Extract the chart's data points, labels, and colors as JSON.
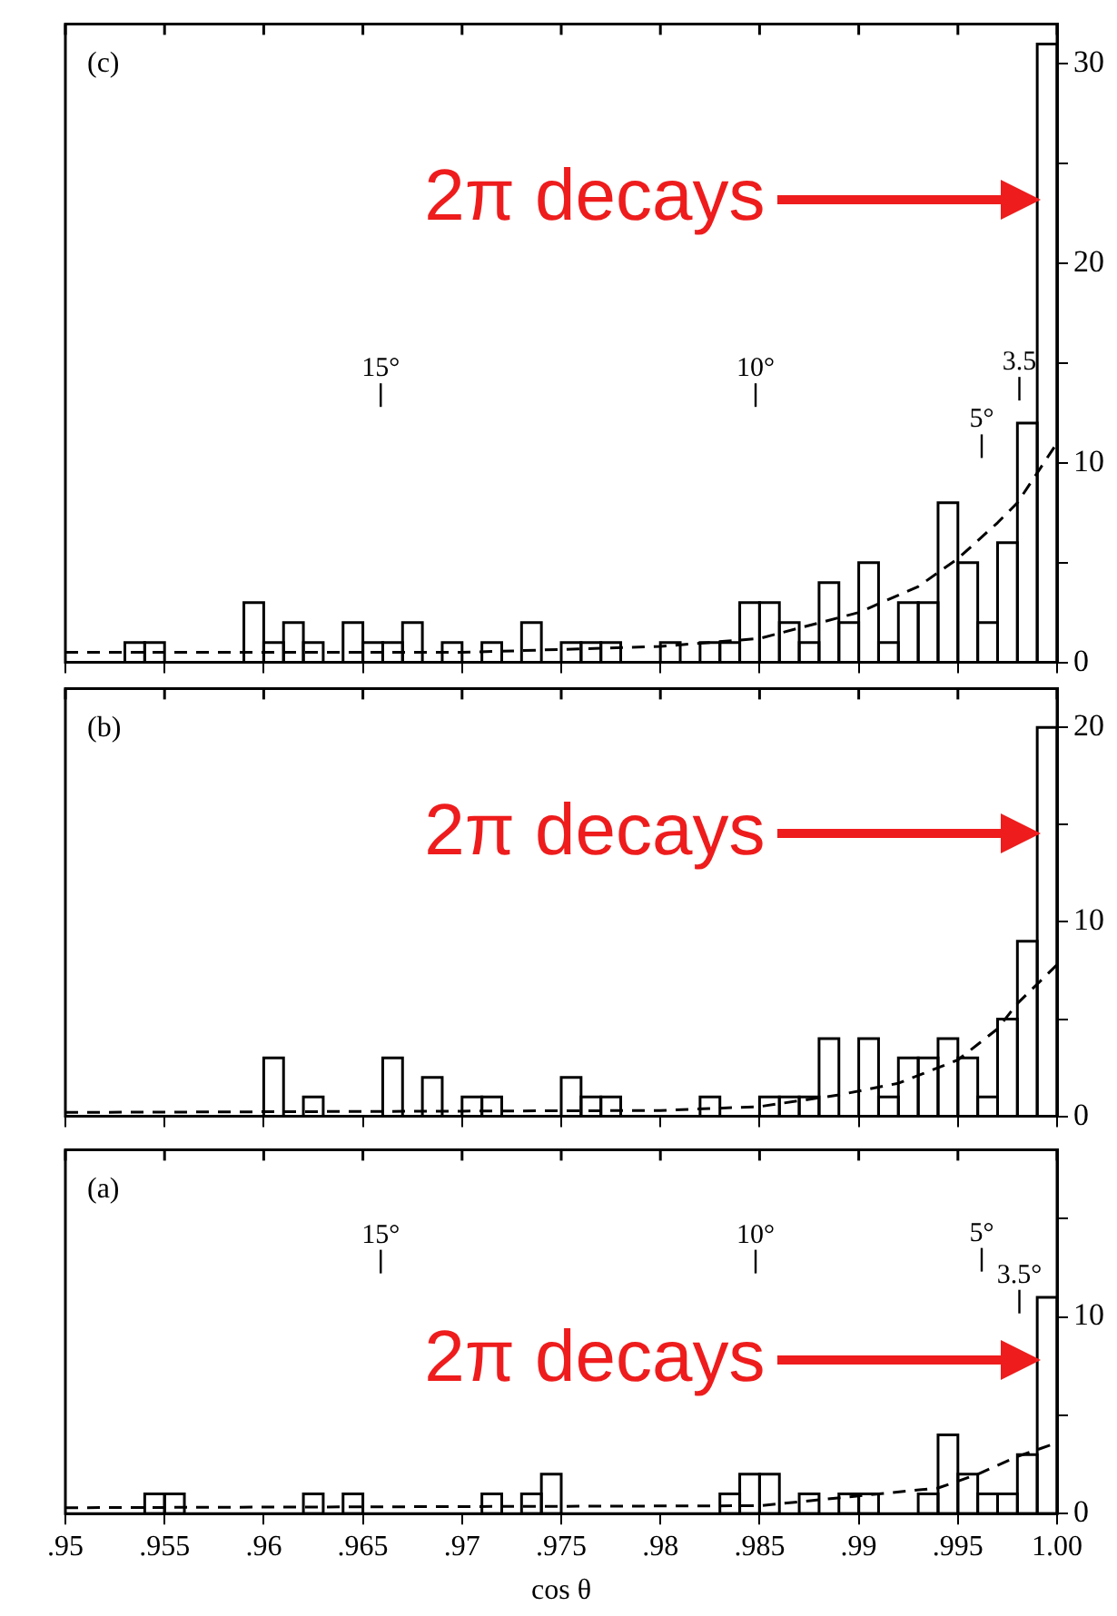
{
  "chart_data": [
    {
      "type": "histogram",
      "title": "(c)",
      "color": "#000000",
      "bins": [
        0.95,
        0.951,
        0.952,
        0.953,
        0.954,
        0.955,
        0.956,
        0.957,
        0.958,
        0.959,
        0.96,
        0.961,
        0.962,
        0.963,
        0.964,
        0.965,
        0.966,
        0.967,
        0.968,
        0.969,
        0.97,
        0.971,
        0.972,
        0.973,
        0.974,
        0.975,
        0.976,
        0.977,
        0.978,
        0.979,
        0.98,
        0.981,
        0.982,
        0.983,
        0.984,
        0.985,
        0.986,
        0.987,
        0.988,
        0.989,
        0.99,
        0.991,
        0.992,
        0.993,
        0.994,
        0.995,
        0.996,
        0.997,
        0.998,
        0.999,
        1.0
      ],
      "values": [
        0,
        0,
        0,
        1,
        1,
        0,
        0,
        0,
        0,
        3,
        1,
        2,
        1,
        0,
        2,
        1,
        1,
        2,
        0,
        1,
        0,
        1,
        0,
        2,
        0,
        1,
        1,
        1,
        0,
        0,
        1,
        0,
        1,
        1,
        3,
        3,
        2,
        1,
        4,
        2,
        5,
        1,
        3,
        3,
        8,
        5,
        2,
        6,
        12,
        31
      ],
      "series": [
        {
          "type": "line",
          "color": "#000000",
          "line_style": "dashed",
          "marker": "none",
          "x": [
            0.95,
            0.97,
            0.98,
            0.985,
            0.99,
            0.993,
            0.995,
            0.997,
            0.998,
            0.999,
            1.0
          ],
          "values": [
            0.5,
            0.5,
            0.8,
            1.2,
            2.5,
            3.8,
            5.2,
            7,
            8,
            9.5,
            11
          ]
        }
      ],
      "xlim": [
        0.95,
        1.0
      ],
      "ylim": [
        0,
        32
      ],
      "xticks": [
        {
          "value": 0.95,
          "label": null
        },
        {
          "value": 0.955,
          "label": null
        },
        {
          "value": 0.96,
          "label": null
        },
        {
          "value": 0.965,
          "label": null
        },
        {
          "value": 0.97,
          "label": null
        },
        {
          "value": 0.975,
          "label": null
        },
        {
          "value": 0.98,
          "label": null
        },
        {
          "value": 0.985,
          "label": null
        },
        {
          "value": 0.99,
          "label": null
        },
        {
          "value": 0.995,
          "label": null
        },
        {
          "value": 1.0,
          "label": null
        }
      ],
      "yticks": [
        0,
        {
          "value": 5,
          "label": null
        },
        10,
        {
          "value": 15,
          "label": null
        },
        20,
        {
          "value": 25,
          "label": null
        },
        30
      ],
      "tick_labels": "y",
      "legend": false,
      "grid": false,
      "annotations": [
        "2π decays",
        "15°",
        "10°",
        "5°",
        "3.5"
      ]
    },
    {
      "type": "histogram",
      "title": "(b)",
      "color": "#000000",
      "bins": [
        0.95,
        0.951,
        0.952,
        0.953,
        0.954,
        0.955,
        0.956,
        0.957,
        0.958,
        0.959,
        0.96,
        0.961,
        0.962,
        0.963,
        0.964,
        0.965,
        0.966,
        0.967,
        0.968,
        0.969,
        0.97,
        0.971,
        0.972,
        0.973,
        0.974,
        0.975,
        0.976,
        0.977,
        0.978,
        0.979,
        0.98,
        0.981,
        0.982,
        0.983,
        0.984,
        0.985,
        0.986,
        0.987,
        0.988,
        0.989,
        0.99,
        0.991,
        0.992,
        0.993,
        0.994,
        0.995,
        0.996,
        0.997,
        0.998,
        0.999,
        1.0
      ],
      "values": [
        0,
        0,
        0,
        0,
        0,
        0,
        0,
        0,
        0,
        0,
        3,
        0,
        1,
        0,
        0,
        0,
        3,
        0,
        2,
        0,
        1,
        1,
        0,
        0,
        0,
        2,
        1,
        1,
        0,
        0,
        0,
        0,
        1,
        0,
        0,
        1,
        1,
        1,
        4,
        0,
        4,
        1,
        3,
        3,
        4,
        3,
        1,
        5,
        9,
        20
      ],
      "series": [
        {
          "type": "line",
          "color": "#000000",
          "line_style": "dashed",
          "marker": "none",
          "x": [
            0.95,
            0.98,
            0.985,
            0.989,
            0.992,
            0.995,
            0.997,
            0.998,
            0.999,
            1.0
          ],
          "values": [
            0.2,
            0.3,
            0.5,
            1.1,
            1.7,
            2.9,
            4.5,
            5.8,
            6.8,
            7.8
          ]
        }
      ],
      "xlim": [
        0.95,
        1.0
      ],
      "ylim": [
        0,
        22
      ],
      "xticks": [
        {
          "value": 0.95,
          "label": null
        },
        {
          "value": 0.955,
          "label": null
        },
        {
          "value": 0.96,
          "label": null
        },
        {
          "value": 0.965,
          "label": null
        },
        {
          "value": 0.97,
          "label": null
        },
        {
          "value": 0.975,
          "label": null
        },
        {
          "value": 0.98,
          "label": null
        },
        {
          "value": 0.985,
          "label": null
        },
        {
          "value": 0.99,
          "label": null
        },
        {
          "value": 0.995,
          "label": null
        },
        {
          "value": 1.0,
          "label": null
        }
      ],
      "yticks": [
        0,
        {
          "value": 5,
          "label": null
        },
        10,
        {
          "value": 15,
          "label": null
        },
        20
      ],
      "tick_labels": "y",
      "legend": false,
      "grid": false,
      "annotations": [
        "2π decays"
      ]
    },
    {
      "type": "histogram",
      "title": "(a)",
      "color": "#000000",
      "xlabel": "cos θ",
      "bins": [
        0.95,
        0.951,
        0.952,
        0.953,
        0.954,
        0.955,
        0.956,
        0.957,
        0.958,
        0.959,
        0.96,
        0.961,
        0.962,
        0.963,
        0.964,
        0.965,
        0.966,
        0.967,
        0.968,
        0.969,
        0.97,
        0.971,
        0.972,
        0.973,
        0.974,
        0.975,
        0.976,
        0.977,
        0.978,
        0.979,
        0.98,
        0.981,
        0.982,
        0.983,
        0.984,
        0.985,
        0.986,
        0.987,
        0.988,
        0.989,
        0.99,
        0.991,
        0.992,
        0.993,
        0.994,
        0.995,
        0.996,
        0.997,
        0.998,
        0.999,
        1.0
      ],
      "values": [
        0,
        0,
        0,
        0,
        1,
        1,
        0,
        0,
        0,
        0,
        0,
        0,
        1,
        0,
        1,
        0,
        0,
        0,
        0,
        0,
        0,
        1,
        0,
        1,
        2,
        0,
        0,
        0,
        0,
        0,
        0,
        0,
        0,
        1,
        2,
        2,
        0,
        1,
        0,
        1,
        1,
        0,
        0,
        1,
        4,
        2,
        1,
        1,
        3,
        11
      ],
      "series": [
        {
          "type": "line",
          "color": "#000000",
          "line_style": "dashed",
          "marker": "none",
          "x": [
            0.95,
            0.985,
            0.99,
            0.994,
            0.996,
            0.998,
            1.0
          ],
          "values": [
            0.3,
            0.4,
            0.9,
            1.3,
            2,
            2.9,
            3.6
          ]
        }
      ],
      "xlim": [
        0.95,
        1.0
      ],
      "ylim": [
        0,
        18.5
      ],
      "xticks": [
        {
          "value": 0.95,
          "label": ".95"
        },
        {
          "value": 0.955,
          "label": ".955"
        },
        {
          "value": 0.96,
          "label": ".96"
        },
        {
          "value": 0.965,
          "label": ".965"
        },
        {
          "value": 0.97,
          "label": ".97"
        },
        {
          "value": 0.975,
          "label": ".975"
        },
        {
          "value": 0.98,
          "label": ".98"
        },
        {
          "value": 0.985,
          "label": ".985"
        },
        {
          "value": 0.99,
          "label": ".99"
        },
        {
          "value": 0.995,
          "label": ".995"
        },
        {
          "value": 1.0,
          "label": "1.00"
        }
      ],
      "yticks": [
        0,
        {
          "value": 5,
          "label": null
        },
        10,
        {
          "value": 15,
          "label": null
        }
      ],
      "legend": false,
      "grid": false,
      "annotations": [
        "2π decays",
        "15°",
        "10°",
        "5°",
        "3.5°"
      ]
    }
  ]
}
